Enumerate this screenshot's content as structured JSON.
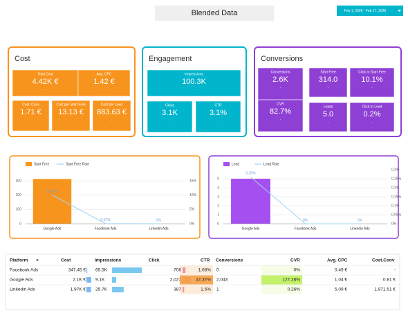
{
  "header": {
    "title": "Blended Data",
    "date_range": "Feb 1, 2026 - Feb 17, 2026"
  },
  "scorecards": [
    {
      "title": "Cost",
      "color": "#f7941d",
      "tiles": [
        {
          "label": "Total Cost",
          "value": "4.42K €",
          "delta": "-"
        },
        {
          "label": "Avg. CPC",
          "value": "1.42 €",
          "delta": "-"
        },
        {
          "label": "Cost. Conv",
          "value": "1.71 €",
          "delta": "-"
        },
        {
          "label": "Cost per Start Free",
          "value": "13.13 €",
          "delta": "-"
        },
        {
          "label": "Cost per Lead",
          "value": "883.63 €",
          "delta": "-"
        }
      ]
    },
    {
      "title": "Engagement",
      "color": "#00b5cc",
      "tiles": [
        {
          "label": "Impressions",
          "value": "100.3K",
          "delta": "-"
        },
        {
          "label": "Clicks",
          "value": "3.1K",
          "delta": "-"
        },
        {
          "label": "CTR",
          "value": "3.1%",
          "delta": "-"
        }
      ]
    },
    {
      "title": "Conversions",
      "color": "#8e3fd4",
      "tiles": [
        {
          "label": "Conversions",
          "value": "2.6K",
          "delta": "-"
        },
        {
          "label": "CVR",
          "value": "82.7%",
          "delta": "-"
        },
        {
          "label": "Start Free",
          "value": "314.0",
          "delta": "-"
        },
        {
          "label": "Click to Start Free",
          "value": "10.1%",
          "delta": "-"
        },
        {
          "label": "Leads",
          "value": "5.0",
          "delta": "-"
        },
        {
          "label": "Click to Lead",
          "value": "0.2%",
          "delta": "-"
        }
      ]
    }
  ],
  "chart_data": [
    {
      "type": "bar",
      "border": "#f7941d",
      "categories": [
        "Google Ads",
        "Facebook Ads",
        "Linkedin Ads"
      ],
      "series": [
        {
          "name": "Start Free",
          "color": "#f7941d",
          "values": [
            314,
            0,
            0
          ]
        },
        {
          "name": "Start Free Rate",
          "type": "line",
          "axis": "y2",
          "color": "#9fd4f0",
          "values": [
            10.07,
            0.07,
            0
          ],
          "value_labels": [
            "10.07%",
            "0.07%",
            "0%"
          ]
        }
      ],
      "ylim": [
        0,
        330
      ],
      "yticks": [
        0,
        100,
        200,
        300
      ],
      "y2lim": [
        0,
        16.5
      ],
      "y2ticks": [
        {
          "value": 0,
          "label": "0%"
        },
        {
          "value": 5,
          "label": "5%"
        },
        {
          "value": 10,
          "label": "10%"
        },
        {
          "value": 15,
          "label": "15%"
        }
      ],
      "grid": true
    },
    {
      "type": "bar",
      "border": "#8e3fd4",
      "categories": [
        "Google Ads",
        "Facebook Ads",
        "Linkedin Ads"
      ],
      "series": [
        {
          "name": "Lead",
          "color": "#a64ff0",
          "values": [
            5,
            0,
            0
          ]
        },
        {
          "name": "Lead Rate",
          "type": "line",
          "axis": "y2",
          "color": "#9fd4f0",
          "values": [
            0.26,
            0,
            0
          ],
          "value_labels": [
            "0.26%",
            "0%",
            "0%"
          ]
        }
      ],
      "ylim": [
        0,
        6
      ],
      "yticks": [
        0,
        1,
        2,
        3,
        4,
        5
      ],
      "y2lim": [
        0,
        0.3
      ],
      "y2ticks": [
        {
          "value": 0,
          "label": "0%"
        },
        {
          "value": 0.05,
          "label": "0.05%"
        },
        {
          "value": 0.1,
          "label": "0.1%"
        },
        {
          "value": 0.15,
          "label": "0.15%"
        },
        {
          "value": 0.2,
          "label": "0.2%"
        },
        {
          "value": 0.25,
          "label": "0.25%"
        },
        {
          "value": 0.3,
          "label": "0.3%"
        }
      ],
      "grid": true
    }
  ],
  "table": {
    "columns": [
      "Platform",
      "Cost",
      "Impressions",
      "Click",
      "CTR",
      "Conversions",
      "CVR",
      "Avg. CPC",
      "Cost.Conv"
    ],
    "rows": [
      [
        "Facebook Ads",
        {
          "value": 347.45,
          "label": "347.45 €"
        },
        {
          "value": 65500,
          "label": "65.5K"
        },
        706,
        {
          "value": 1.08,
          "label": "1.08%"
        },
        "0",
        {
          "value": 0,
          "label": "0%"
        },
        "0.49 €",
        "-"
      ],
      [
        "Google Ads",
        {
          "value": 2100,
          "label": "2.1K €"
        },
        {
          "value": 9100,
          "label": "9.1K"
        },
        {
          "value": 2027,
          "label": "2,027"
        },
        {
          "value": 22.37,
          "label": "22.37%"
        },
        "2,043",
        {
          "value": 127.28,
          "label": "127.28%"
        },
        "1.04 €",
        "0.81 €"
      ],
      [
        "Linkedin Ads",
        {
          "value": 1970,
          "label": "1.97K €"
        },
        {
          "value": 25700,
          "label": "25.7K"
        },
        387,
        {
          "value": 1.5,
          "label": "1.5%"
        },
        "1",
        {
          "value": 0.26,
          "label": "0.26%"
        },
        "5.09 €",
        "1,971.51 €"
      ]
    ]
  }
}
